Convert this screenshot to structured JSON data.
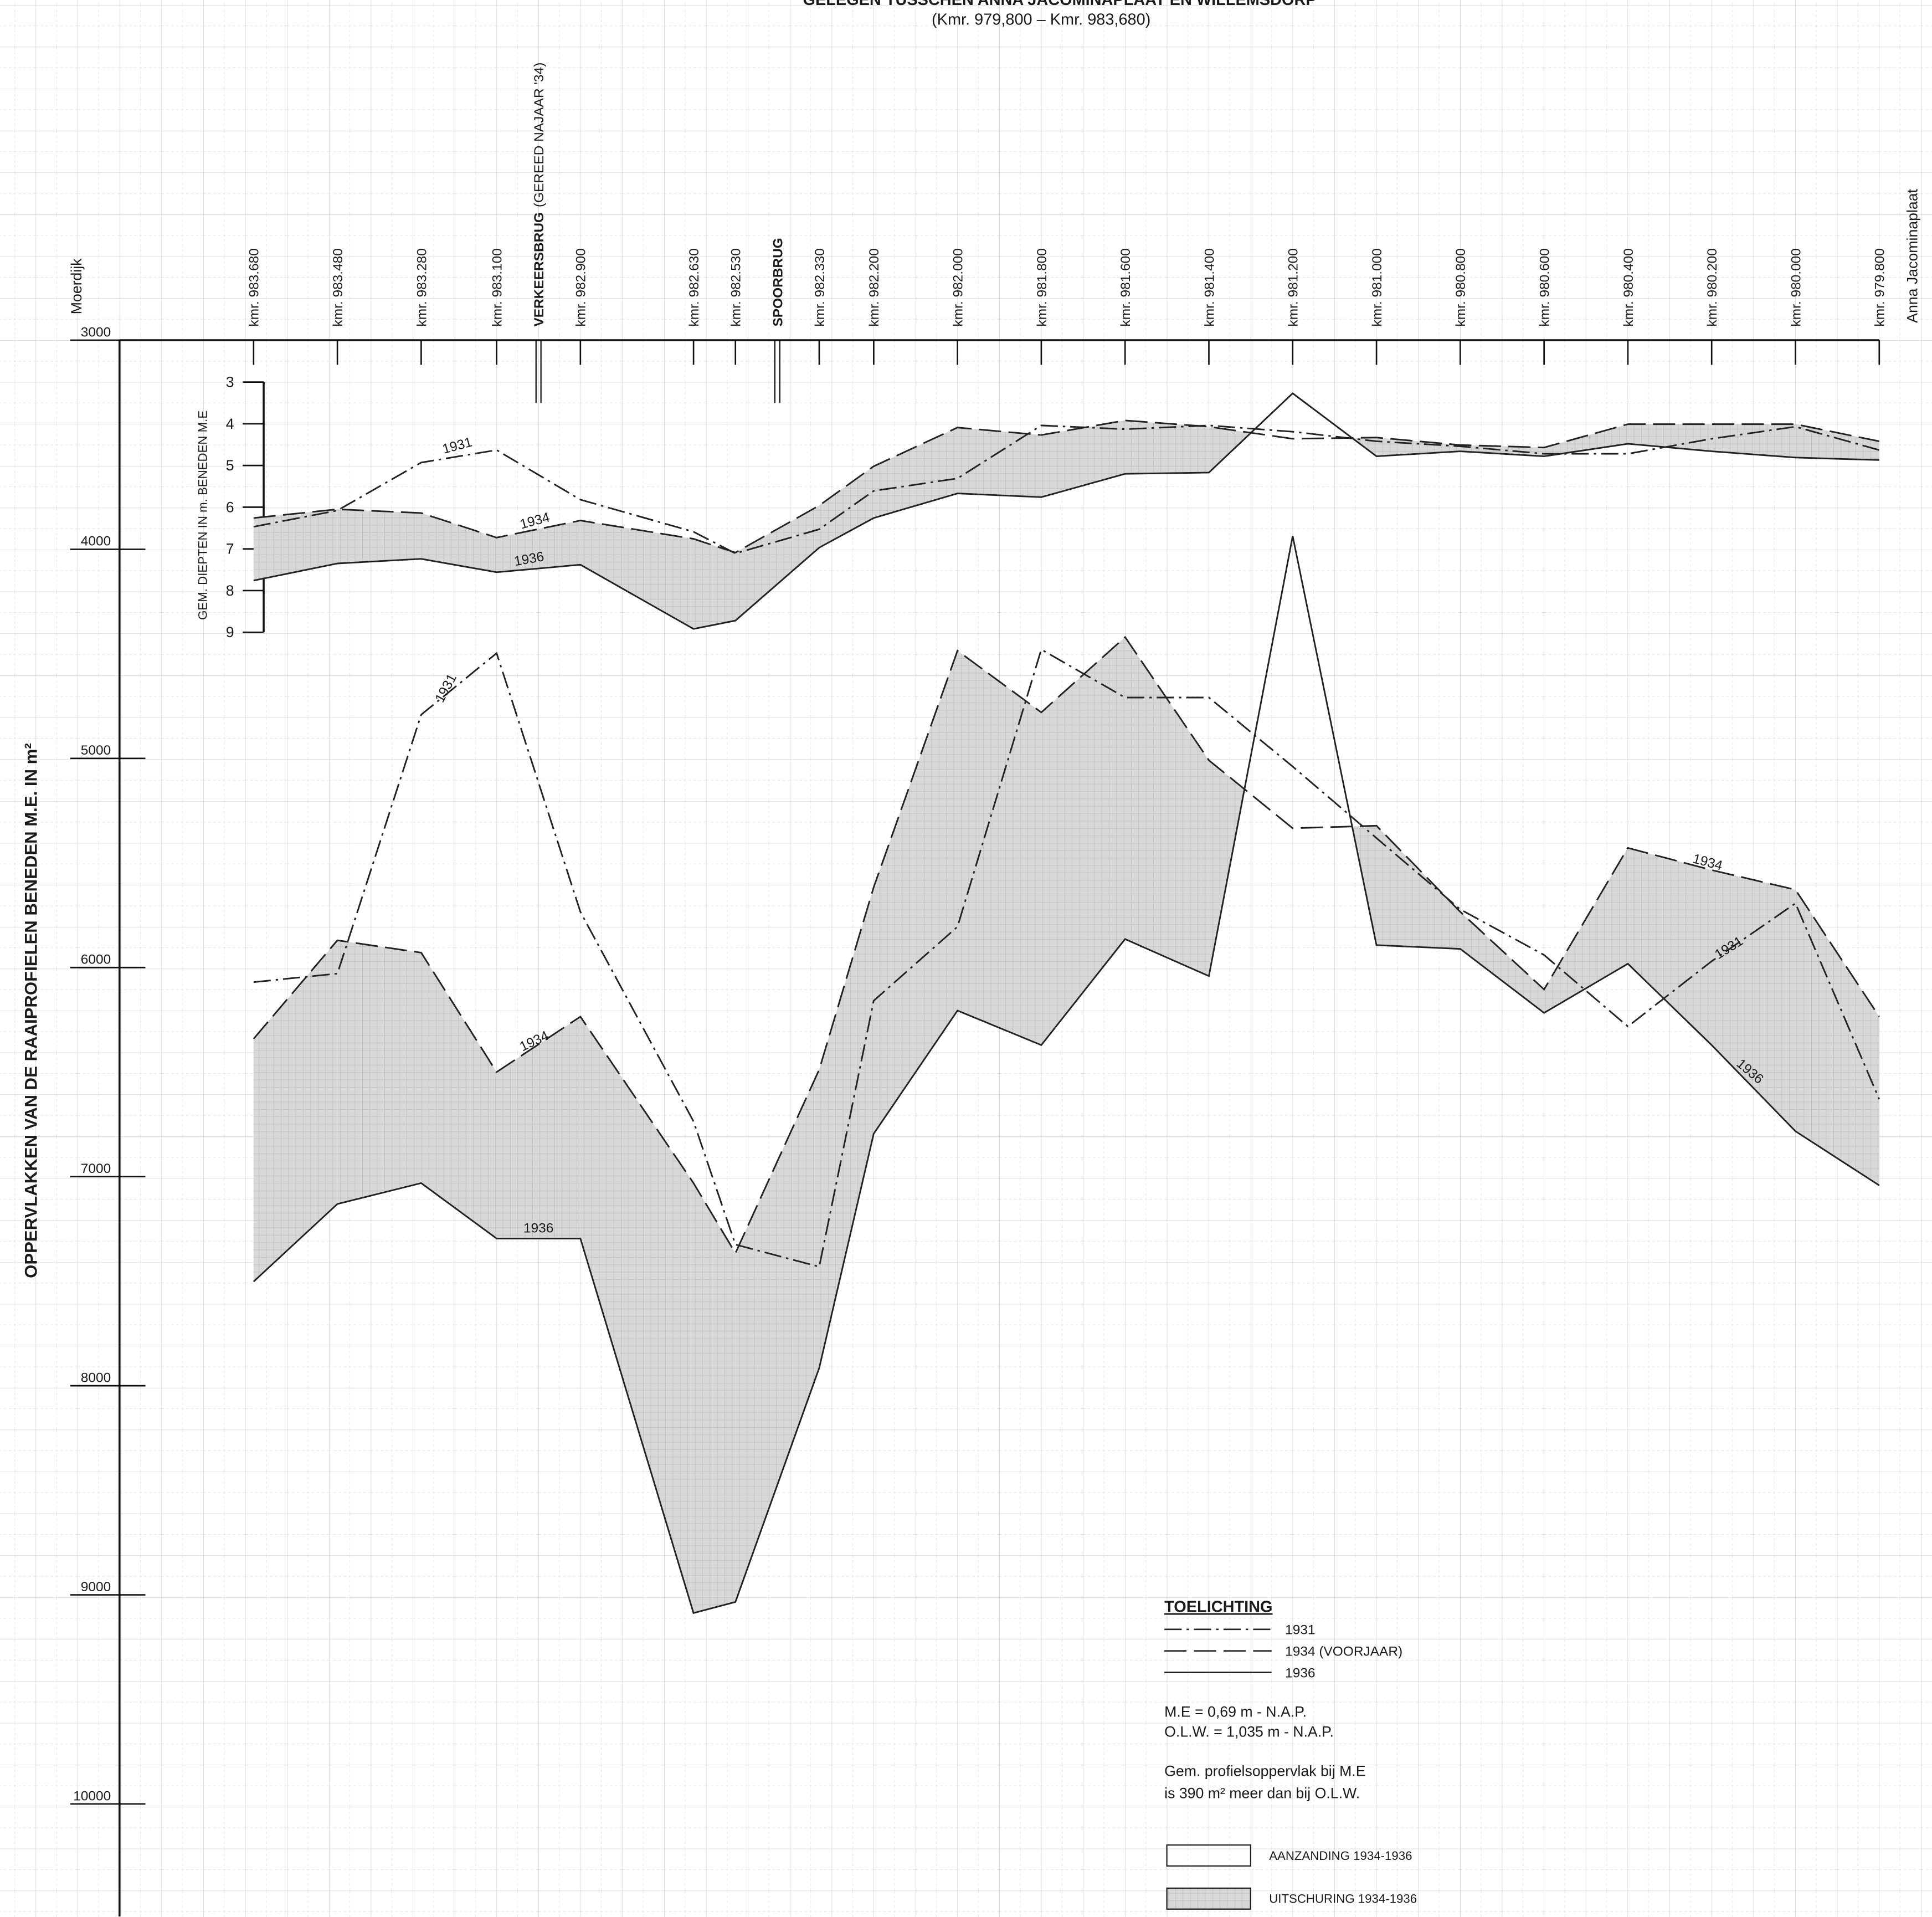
{
  "title": "GELEGEN TUSSCHEN ANNA JACOMINAPLAAT EN WILLEMSDORP",
  "subtitle": "(Kmr. 979,800 – Kmr. 983,680)",
  "ends": [
    "Moerdijk",
    "Anna Jacominaplaat"
  ],
  "chart_data": [
    {
      "type": "line",
      "y_label": "OPPERVLAKKEN VAN DE RAAIPROFIELEN BENEDEN M.E. IN m²",
      "xlim": [
        984.0,
        979.68
      ],
      "ylim": [
        3000,
        10550
      ],
      "yticks": [
        3000,
        4000,
        5000,
        6000,
        7000,
        8000,
        9000,
        10000
      ],
      "xticks": [
        {
          "value": 983.68,
          "label": "kmr. 983.680"
        },
        {
          "value": 983.48,
          "label": "kmr. 983.480"
        },
        {
          "value": 983.28,
          "label": "kmr. 983.280"
        },
        {
          "value": 983.1,
          "label": "kmr. 983.100"
        },
        {
          "value": 982.9,
          "label": "kmr. 982.900"
        },
        {
          "value": 982.63,
          "label": "kmr. 982.630"
        },
        {
          "value": 982.53,
          "label": "kmr. 982.530"
        },
        {
          "value": 982.33,
          "label": "kmr. 982.330"
        },
        {
          "value": 982.2,
          "label": "kmr. 982.200"
        },
        {
          "value": 982.0,
          "label": "kmr. 982.000"
        },
        {
          "value": 981.8,
          "label": "kmr. 981.800"
        },
        {
          "value": 981.6,
          "label": "kmr. 981.600"
        },
        {
          "value": 981.4,
          "label": "kmr. 981.400"
        },
        {
          "value": 981.2,
          "label": "kmr. 981.200"
        },
        {
          "value": 981.0,
          "label": "kmr. 981.000"
        },
        {
          "value": 980.8,
          "label": "kmr. 980.800"
        },
        {
          "value": 980.6,
          "label": "kmr. 980.600"
        },
        {
          "value": 980.4,
          "label": "kmr. 980.400"
        },
        {
          "value": 980.2,
          "label": "kmr. 980.200"
        },
        {
          "value": 980.0,
          "label": "kmr. 980.000"
        },
        {
          "value": 979.8,
          "label": "kmr. 979.800"
        }
      ],
      "annotations": [
        {
          "x": 983.0,
          "text": "VERKEERSBRUG",
          "note": "(GEREED NAJAAR '34)"
        },
        {
          "x": 982.43,
          "text": "SPOORBRUG"
        }
      ],
      "x": [
        983.68,
        983.48,
        983.28,
        983.1,
        982.9,
        982.63,
        982.53,
        982.33,
        982.2,
        982.0,
        981.8,
        981.6,
        981.4,
        981.2,
        981.0,
        980.8,
        980.6,
        980.4,
        980.2,
        980.0,
        979.8
      ],
      "series": [
        {
          "name": "1931",
          "color": "#222222",
          "linestyle": "dashdot",
          "values": [
            6070,
            6029,
            4791,
            4497,
            5734,
            6736,
            7325,
            7431,
            6159,
            5805,
            4479,
            4709,
            4709,
            5039,
            5381,
            5722,
            5940,
            6282,
            5970,
            5693,
            6630
          ]
        },
        {
          "name": "1934",
          "color": "#222222",
          "linestyle": "dashed",
          "values": [
            6341,
            5870,
            5929,
            6500,
            6235,
            7031,
            7366,
            6488,
            5616,
            4485,
            4780,
            4420,
            5009,
            5334,
            5322,
            5734,
            6105,
            5428,
            5534,
            5628,
            6235
          ]
        },
        {
          "name": "1936",
          "color": "#222222",
          "linestyle": "solid",
          "values": [
            7502,
            7131,
            7031,
            7296,
            7296,
            9087,
            9034,
            7915,
            6795,
            6206,
            6371,
            5864,
            6041,
            3937,
            5893,
            5911,
            6217,
            5982,
            6371,
            6783,
            7042
          ]
        }
      ]
    },
    {
      "type": "line",
      "y_label": "GEM. DIEPTEN IN m. BENEDEN M.E",
      "xlim": [
        984.0,
        979.68
      ],
      "ylim": [
        3,
        9
      ],
      "yticks": [
        3,
        4,
        5,
        6,
        7,
        8,
        9
      ],
      "x": [
        983.68,
        983.48,
        983.28,
        983.1,
        982.9,
        982.63,
        982.53,
        982.33,
        982.2,
        982.0,
        981.8,
        981.6,
        981.4,
        981.2,
        981.0,
        980.8,
        980.6,
        980.4,
        980.2,
        980.0,
        979.8
      ],
      "series": [
        {
          "name": "1931",
          "color": "#222222",
          "linestyle": "dashdot",
          "values": [
            6.47,
            6.08,
            4.93,
            4.63,
            5.82,
            6.59,
            7.11,
            6.53,
            5.61,
            5.31,
            4.04,
            4.13,
            4.04,
            4.19,
            4.42,
            4.54,
            4.72,
            4.72,
            4.36,
            4.07,
            4.63
          ]
        },
        {
          "name": "1934",
          "color": "#222222",
          "linestyle": "dashed",
          "values": [
            6.26,
            6.05,
            6.14,
            6.73,
            6.32,
            6.76,
            7.09,
            5.96,
            5.02,
            4.09,
            4.27,
            3.92,
            4.07,
            4.36,
            4.33,
            4.51,
            4.57,
            4.01,
            4.01,
            4.01,
            4.42
          ]
        },
        {
          "name": "1936",
          "color": "#222222",
          "linestyle": "solid",
          "values": [
            7.76,
            7.35,
            7.24,
            7.56,
            7.38,
            8.92,
            8.72,
            6.97,
            6.26,
            5.67,
            5.76,
            5.2,
            5.17,
            3.27,
            4.78,
            4.66,
            4.78,
            4.48,
            4.66,
            4.81,
            4.87
          ]
        }
      ]
    }
  ],
  "legend": {
    "title": "TOELICHTING",
    "labels": [
      "1931",
      "1934 (VOORJAAR)",
      "1936"
    ]
  },
  "notes": [
    "M.E = 0,69 m - N.A.P.",
    "O.L.W. = 1,035 m - N.A.P.",
    "Gem. profielsoppervlak bij M.E",
    "is 390 m² meer dan bij O.L.W."
  ],
  "keys": [
    "AANZANDING 1934-1936",
    "UITSCHURING 1934-1936"
  ]
}
